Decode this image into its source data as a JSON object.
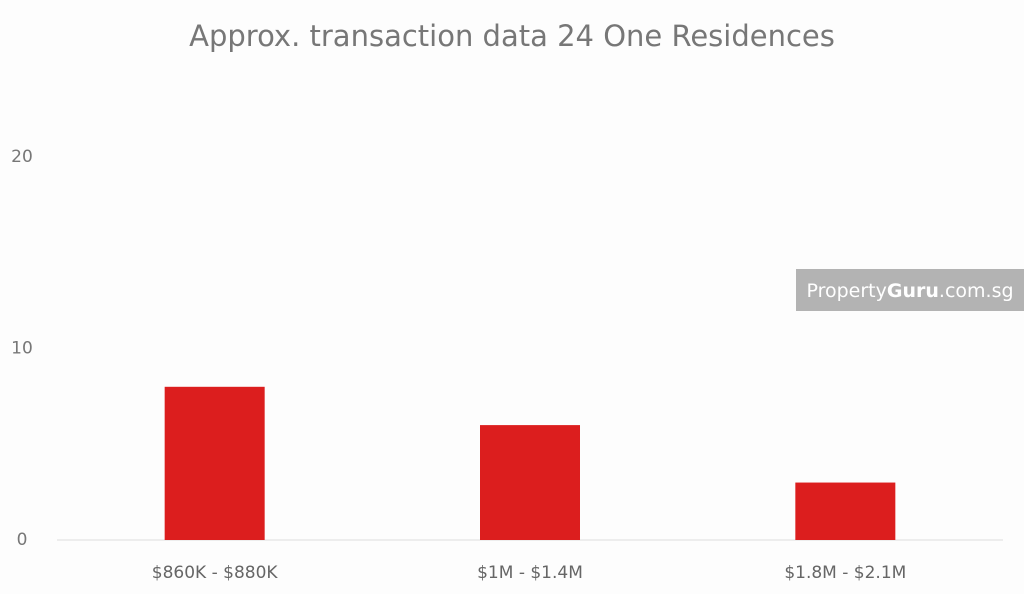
{
  "chart_data": {
    "type": "bar",
    "title": "Approx. transaction data 24 One Residences",
    "categories": [
      "$860K - $880K",
      "$1M - $1.4M",
      "$1.8M - $2.1M"
    ],
    "values": [
      8,
      6,
      3
    ],
    "color": "#dc1e1e",
    "ylim": [
      0,
      20
    ],
    "yticks": [
      0,
      10,
      20
    ],
    "grid": false,
    "watermark": [
      "Property",
      "Guru",
      ".com.sg"
    ]
  }
}
